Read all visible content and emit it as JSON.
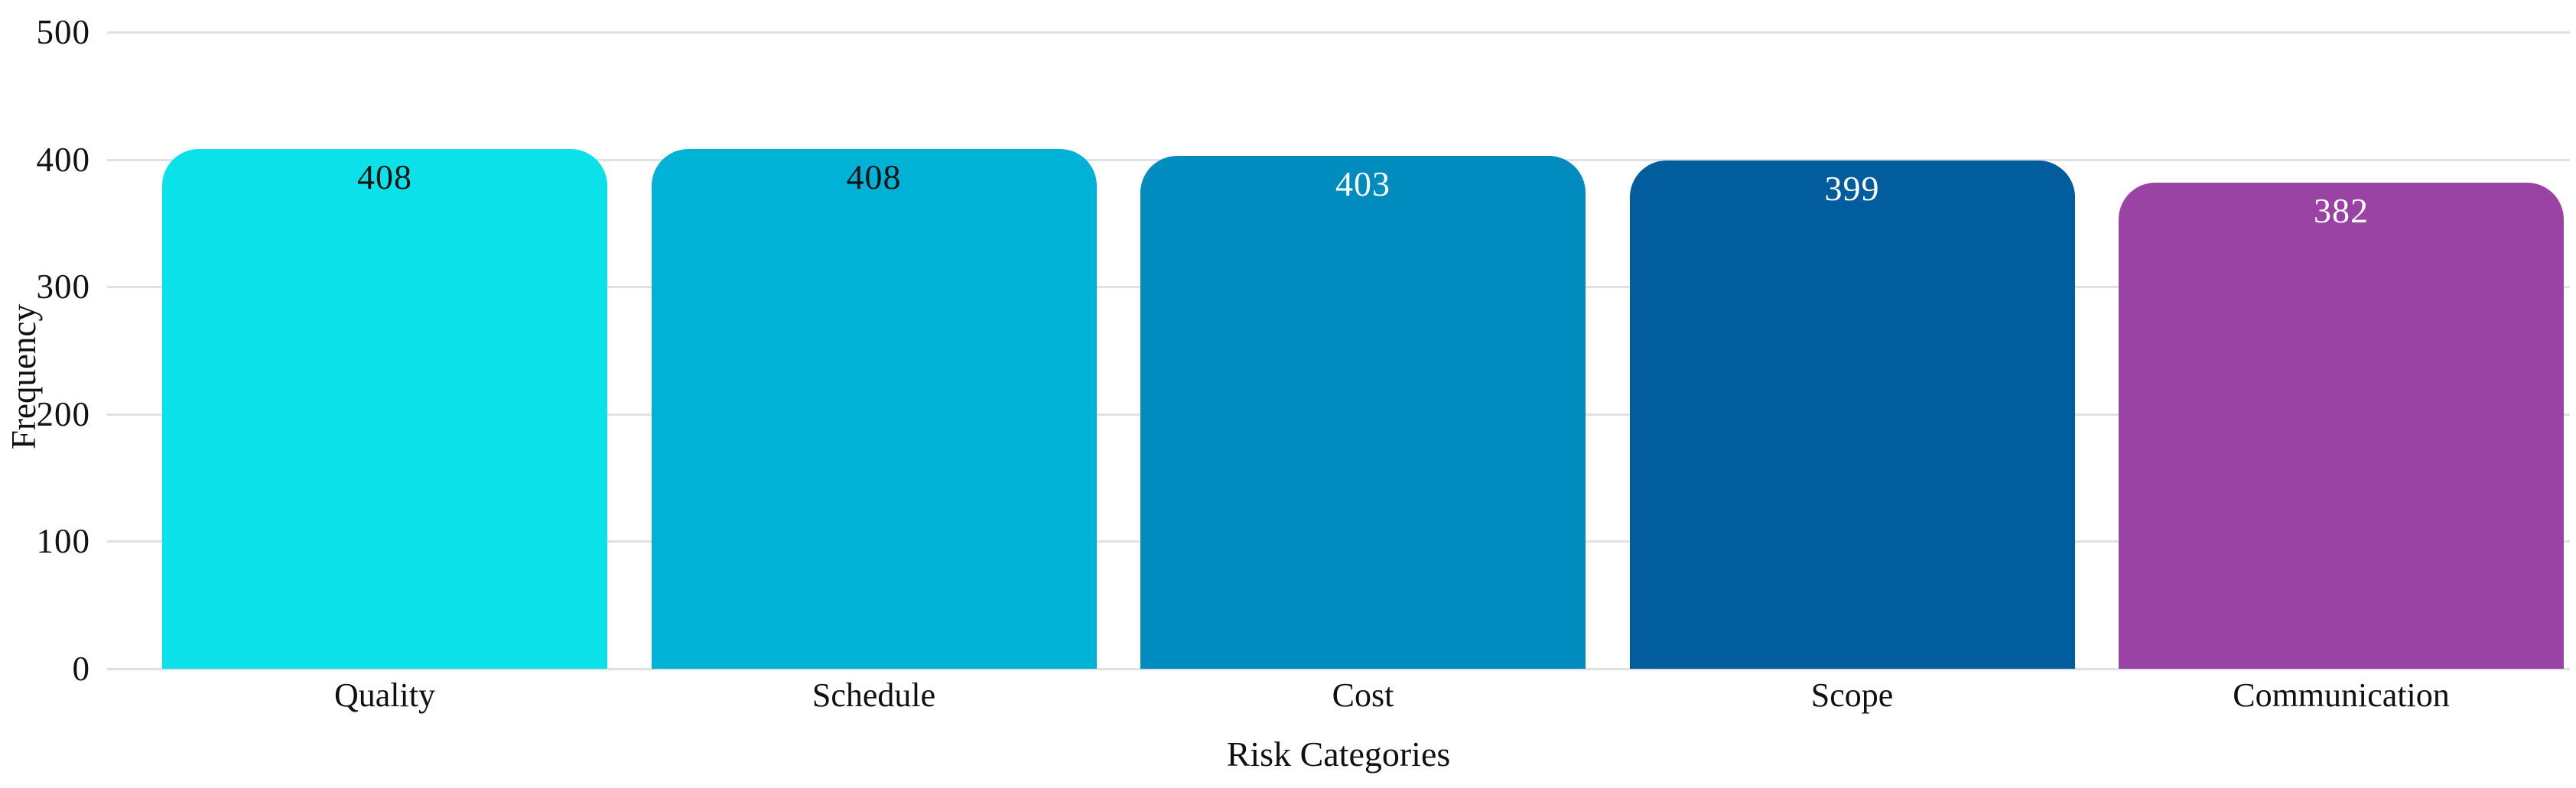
{
  "chart_data": {
    "type": "bar",
    "title": "",
    "xlabel": "Risk Categories",
    "ylabel": "Frequency",
    "categories": [
      "Quality",
      "Schedule",
      "Cost",
      "Scope",
      "Communication"
    ],
    "values": [
      408,
      408,
      403,
      399,
      382
    ],
    "ylim": [
      0,
      500
    ],
    "yticks": [
      0,
      100,
      200,
      300,
      400,
      500
    ],
    "grid": true,
    "legend": "none",
    "bar_colors": [
      "#0ae1e9",
      "#00b3d6",
      "#008cbf",
      "#015d9d",
      "#9a43a5"
    ],
    "value_label_colors": [
      "#111111",
      "#111111",
      "#ffffff",
      "#ffffff",
      "#ffffff"
    ],
    "gridline_color": "#e1e1e1",
    "text_color": "#111111",
    "background_color": "#ffffff"
  }
}
